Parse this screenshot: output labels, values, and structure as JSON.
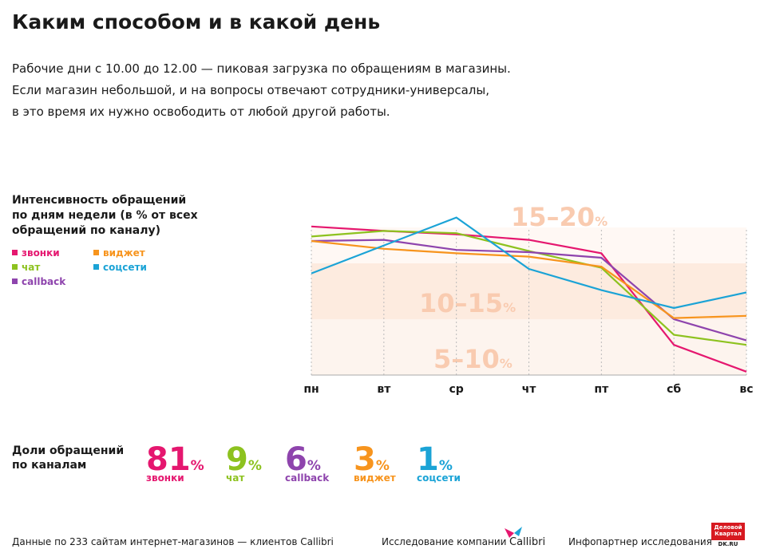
{
  "title": "Каким способом и в какой день",
  "description": [
    "Рабочие дни с 10.00 до 12.00 — пиковая загрузка по обращениям в магазины.",
    "Если магазин небольшой, и на вопросы отвечают сотрудники-универсалы,",
    "в это время их нужно освободить от любой другой работы."
  ],
  "chart_data": [
    {
      "type": "line",
      "title": [
        "Интенсивность обращений",
        "по дням недели (в % от всех",
        "обращений по каналу)"
      ],
      "categories": [
        "пн",
        "вт",
        "ср",
        "чт",
        "пт",
        "сб",
        "вс"
      ],
      "ylim": [
        5,
        20
      ],
      "unit": "%",
      "grid": true,
      "bands": [
        {
          "label": "5–10",
          "from": 5,
          "to": 10,
          "color": "#fdf4ee"
        },
        {
          "label": "10–15",
          "from": 10,
          "to": 15,
          "color": "#fdebdf"
        },
        {
          "label": "15–20",
          "from": 15,
          "to": 20,
          "color": "#fff8f4"
        }
      ],
      "series": [
        {
          "name": "звонки",
          "color": "#e5176f",
          "values": [
            18.3,
            17.9,
            17.6,
            17.1,
            15.9,
            7.7,
            5.3
          ]
        },
        {
          "name": "чат",
          "color": "#8dc21f",
          "values": [
            17.4,
            17.9,
            17.7,
            16.1,
            14.6,
            8.6,
            7.7
          ]
        },
        {
          "name": "callback",
          "color": "#8e44ad",
          "values": [
            17.0,
            17.1,
            16.2,
            16.0,
            15.5,
            10.0,
            8.1
          ]
        },
        {
          "name": "виджет",
          "color": "#f7941d",
          "values": [
            17.0,
            16.3,
            15.9,
            15.6,
            14.7,
            10.1,
            10.3
          ]
        },
        {
          "name": "соцсети",
          "color": "#1ba3d6",
          "values": [
            14.1,
            16.6,
            19.1,
            14.5,
            12.6,
            11.0,
            12.4
          ]
        }
      ]
    },
    {
      "type": "shares",
      "title": [
        "Доли обращений",
        "по каналам"
      ],
      "unit": "%",
      "items": [
        {
          "name": "звонки",
          "value": 81,
          "color": "#e5176f"
        },
        {
          "name": "чат",
          "value": 9,
          "color": "#8dc21f"
        },
        {
          "name": "callback",
          "value": 6,
          "color": "#8e44ad"
        },
        {
          "name": "виджет",
          "value": 3,
          "color": "#f7941d"
        },
        {
          "name": "соцсети",
          "value": 1,
          "color": "#1ba3d6"
        }
      ]
    }
  ],
  "footer": {
    "source": "Данные по 233 сайтам интернет-магазинов — клиентов Callibri",
    "research": "Исследование компании",
    "research_logo": "Callibri",
    "partner": "Инфопартнер исследования",
    "partner_logo": [
      "Деловой",
      "Квартал"
    ],
    "partner_site": "DK.RU"
  }
}
